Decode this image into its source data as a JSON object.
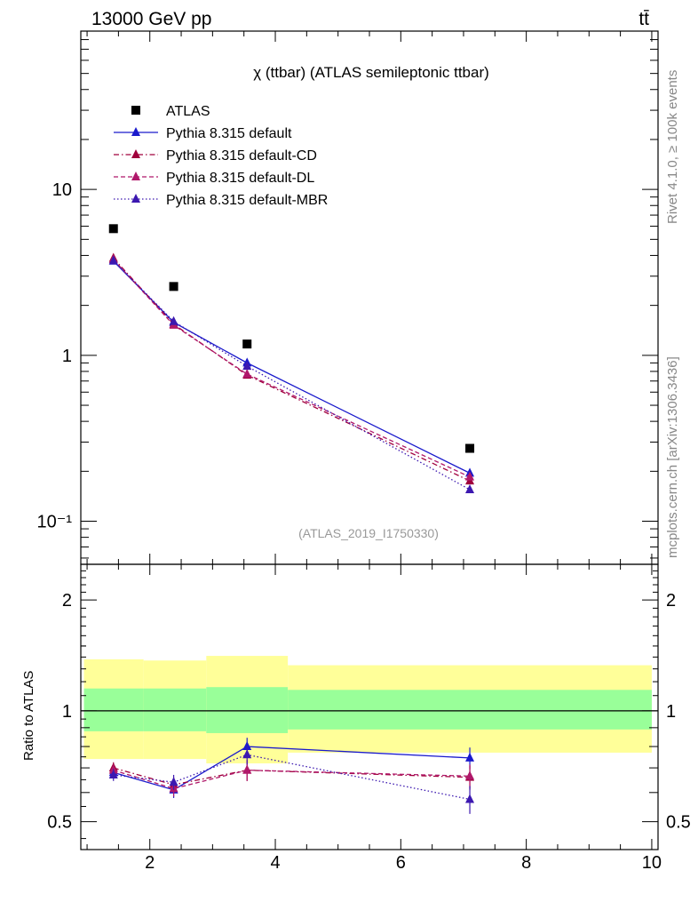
{
  "header": {
    "energy_label": "13000 GeV pp",
    "process_label": "tt̄",
    "side_top": "Rivet 4.1.0, ≥ 100k events",
    "side_bottom": "mcplots.cern.ch [arXiv:1306.3436]"
  },
  "colors": {
    "atlas": "#000000",
    "default": "#1a1acc",
    "cd": "#a0003c",
    "dl": "#b0186a",
    "mbr": "#3c18b0",
    "band_inner": "#99ff99",
    "band_outer": "#ffff99"
  },
  "chart_data": [
    {
      "type": "line",
      "title": "χ (ttbar) (ATLAS semileptonic ttbar)",
      "analysis_label": "(ATLAS_2019_I1750330)",
      "xlabel": "",
      "ylabel": "",
      "yscale": "log",
      "xlim": [
        0.9,
        10.1
      ],
      "ylim": [
        0.055,
        90
      ],
      "y_ticks": [
        {
          "value": 10,
          "label": "10"
        },
        {
          "value": 1,
          "label": "1"
        },
        {
          "value": 0.1,
          "label": "10⁻¹"
        }
      ],
      "legend_position": "top-left",
      "series": [
        {
          "name": "ATLAS",
          "style": "data",
          "x": [
            1.42,
            2.38,
            3.55,
            7.1
          ],
          "y": [
            5.8,
            2.6,
            1.17,
            0.275
          ]
        },
        {
          "name": "Pythia 8.315 default",
          "style": "solid",
          "x": [
            1.42,
            2.38,
            3.55,
            7.1
          ],
          "y": [
            3.7,
            1.58,
            0.9,
            0.195
          ]
        },
        {
          "name": "Pythia 8.315 default-CD",
          "style": "dashdot",
          "x": [
            1.42,
            2.38,
            3.55,
            7.1
          ],
          "y": [
            3.85,
            1.54,
            0.76,
            0.175
          ]
        },
        {
          "name": "Pythia 8.315 default-DL",
          "style": "dashed",
          "x": [
            1.42,
            2.38,
            3.55,
            7.1
          ],
          "y": [
            3.78,
            1.52,
            0.77,
            0.185
          ]
        },
        {
          "name": "Pythia 8.315 default-MBR",
          "style": "dotted",
          "x": [
            1.42,
            2.38,
            3.55,
            7.1
          ],
          "y": [
            3.72,
            1.6,
            0.86,
            0.155
          ]
        }
      ]
    },
    {
      "type": "line",
      "title": "",
      "xlabel": "",
      "ylabel": "Ratio to ATLAS",
      "yscale": "log",
      "xlim": [
        0.9,
        10.1
      ],
      "ylim": [
        0.42,
        2.5
      ],
      "x_ticks": [
        2,
        4,
        6,
        8,
        10
      ],
      "y_ticks": [
        {
          "value": 2,
          "label": "2"
        },
        {
          "value": 1,
          "label": "1"
        },
        {
          "value": 0.5,
          "label": "0.5"
        }
      ],
      "bands": [
        {
          "x0": 0.95,
          "x1": 1.9,
          "outer": [
            0.74,
            1.38
          ],
          "inner": [
            0.88,
            1.15
          ]
        },
        {
          "x0": 1.9,
          "x1": 2.9,
          "outer": [
            0.74,
            1.37
          ],
          "inner": [
            0.88,
            1.15
          ]
        },
        {
          "x0": 2.9,
          "x1": 4.2,
          "outer": [
            0.72,
            1.41
          ],
          "inner": [
            0.87,
            1.16
          ]
        },
        {
          "x0": 4.2,
          "x1": 10.0,
          "outer": [
            0.77,
            1.33
          ],
          "inner": [
            0.89,
            1.14
          ]
        }
      ],
      "series": [
        {
          "name": "Pythia 8.315 default",
          "style": "solid",
          "x": [
            1.42,
            2.38,
            3.55,
            7.1
          ],
          "y": [
            0.68,
            0.61,
            0.8,
            0.745
          ]
        },
        {
          "name": "Pythia 8.315 default-CD",
          "style": "dashdot",
          "x": [
            1.42,
            2.38,
            3.55,
            7.1
          ],
          "y": [
            0.7,
            0.63,
            0.69,
            0.66
          ]
        },
        {
          "name": "Pythia 8.315 default-DL",
          "style": "dashed",
          "x": [
            1.42,
            2.38,
            3.55,
            7.1
          ],
          "y": [
            0.69,
            0.615,
            0.69,
            0.665
          ]
        },
        {
          "name": "Pythia 8.315 default-MBR",
          "style": "dotted",
          "x": [
            1.42,
            2.38,
            3.55,
            7.1
          ],
          "y": [
            0.67,
            0.64,
            0.76,
            0.575
          ]
        }
      ],
      "errors": [
        0.025,
        0.03,
        0.045,
        0.05
      ]
    }
  ]
}
